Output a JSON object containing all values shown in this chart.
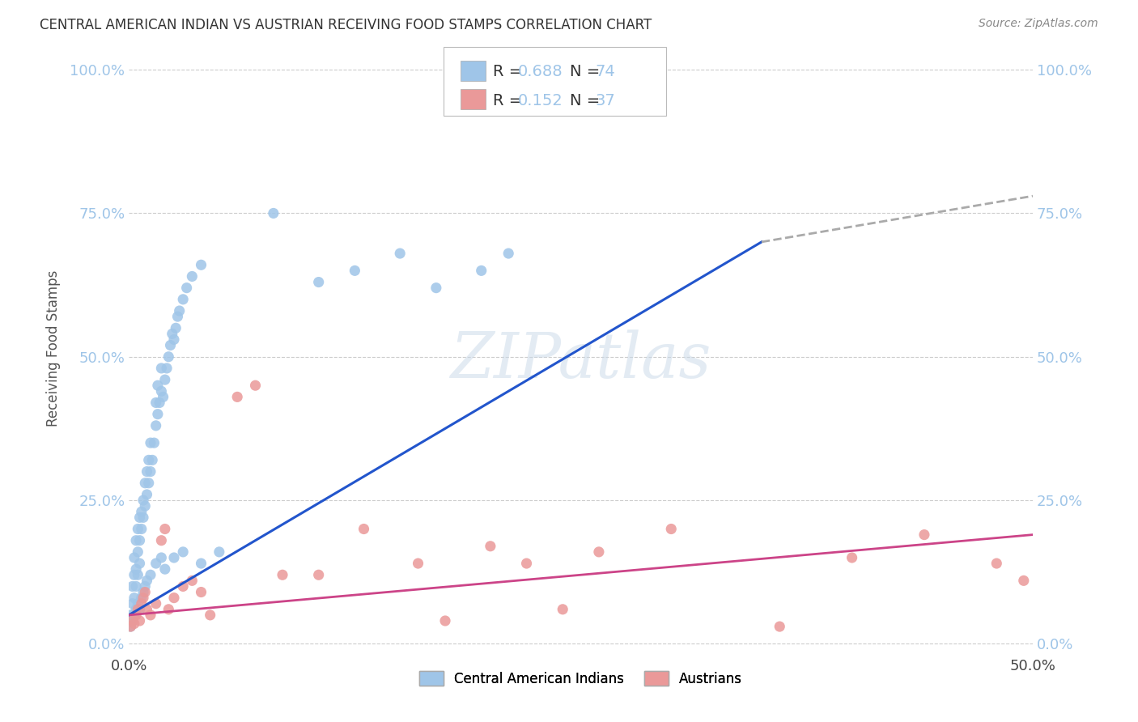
{
  "title": "CENTRAL AMERICAN INDIAN VS AUSTRIAN RECEIVING FOOD STAMPS CORRELATION CHART",
  "source": "Source: ZipAtlas.com",
  "ylabel": "Receiving Food Stamps",
  "xlim": [
    0.0,
    0.5
  ],
  "ylim": [
    -0.02,
    1.05
  ],
  "ytick_vals": [
    0.0,
    0.25,
    0.5,
    0.75,
    1.0
  ],
  "ytick_labels": [
    "0.0%",
    "25.0%",
    "50.0%",
    "75.0%",
    "100.0%"
  ],
  "xtick_vals": [
    0.0,
    0.5
  ],
  "xtick_labels": [
    "0.0%",
    "50.0%"
  ],
  "grid_color": "#cccccc",
  "background_color": "#ffffff",
  "watermark": "ZIPatlas",
  "blue_color": "#9fc5e8",
  "pink_color": "#ea9999",
  "blue_line_color": "#2255cc",
  "pink_line_color": "#cc4488",
  "dashed_line_color": "#aaaaaa",
  "blue_scatter": [
    [
      0.001,
      0.05
    ],
    [
      0.002,
      0.07
    ],
    [
      0.002,
      0.1
    ],
    [
      0.003,
      0.08
    ],
    [
      0.003,
      0.12
    ],
    [
      0.003,
      0.15
    ],
    [
      0.004,
      0.1
    ],
    [
      0.004,
      0.13
    ],
    [
      0.004,
      0.18
    ],
    [
      0.005,
      0.12
    ],
    [
      0.005,
      0.16
    ],
    [
      0.005,
      0.2
    ],
    [
      0.006,
      0.14
    ],
    [
      0.006,
      0.18
    ],
    [
      0.006,
      0.22
    ],
    [
      0.007,
      0.2
    ],
    [
      0.007,
      0.23
    ],
    [
      0.008,
      0.22
    ],
    [
      0.008,
      0.25
    ],
    [
      0.009,
      0.24
    ],
    [
      0.009,
      0.28
    ],
    [
      0.01,
      0.26
    ],
    [
      0.01,
      0.3
    ],
    [
      0.011,
      0.28
    ],
    [
      0.011,
      0.32
    ],
    [
      0.012,
      0.3
    ],
    [
      0.012,
      0.35
    ],
    [
      0.013,
      0.32
    ],
    [
      0.014,
      0.35
    ],
    [
      0.015,
      0.38
    ],
    [
      0.015,
      0.42
    ],
    [
      0.016,
      0.4
    ],
    [
      0.016,
      0.45
    ],
    [
      0.017,
      0.42
    ],
    [
      0.018,
      0.44
    ],
    [
      0.018,
      0.48
    ],
    [
      0.019,
      0.43
    ],
    [
      0.02,
      0.46
    ],
    [
      0.021,
      0.48
    ],
    [
      0.022,
      0.5
    ],
    [
      0.023,
      0.52
    ],
    [
      0.024,
      0.54
    ],
    [
      0.025,
      0.53
    ],
    [
      0.026,
      0.55
    ],
    [
      0.027,
      0.57
    ],
    [
      0.028,
      0.58
    ],
    [
      0.03,
      0.6
    ],
    [
      0.032,
      0.62
    ],
    [
      0.035,
      0.64
    ],
    [
      0.04,
      0.66
    ],
    [
      0.001,
      0.03
    ],
    [
      0.002,
      0.04
    ],
    [
      0.003,
      0.05
    ],
    [
      0.004,
      0.06
    ],
    [
      0.005,
      0.07
    ],
    [
      0.006,
      0.06
    ],
    [
      0.007,
      0.08
    ],
    [
      0.008,
      0.09
    ],
    [
      0.009,
      0.1
    ],
    [
      0.01,
      0.11
    ],
    [
      0.012,
      0.12
    ],
    [
      0.015,
      0.14
    ],
    [
      0.018,
      0.15
    ],
    [
      0.02,
      0.13
    ],
    [
      0.025,
      0.15
    ],
    [
      0.03,
      0.16
    ],
    [
      0.04,
      0.14
    ],
    [
      0.05,
      0.16
    ],
    [
      0.08,
      0.75
    ],
    [
      0.105,
      0.63
    ],
    [
      0.125,
      0.65
    ],
    [
      0.15,
      0.68
    ],
    [
      0.17,
      0.62
    ],
    [
      0.195,
      0.65
    ],
    [
      0.21,
      0.68
    ]
  ],
  "pink_scatter": [
    [
      0.001,
      0.03
    ],
    [
      0.002,
      0.04
    ],
    [
      0.003,
      0.035
    ],
    [
      0.004,
      0.05
    ],
    [
      0.005,
      0.06
    ],
    [
      0.006,
      0.04
    ],
    [
      0.007,
      0.07
    ],
    [
      0.008,
      0.08
    ],
    [
      0.009,
      0.09
    ],
    [
      0.01,
      0.06
    ],
    [
      0.012,
      0.05
    ],
    [
      0.015,
      0.07
    ],
    [
      0.018,
      0.18
    ],
    [
      0.02,
      0.2
    ],
    [
      0.022,
      0.06
    ],
    [
      0.025,
      0.08
    ],
    [
      0.03,
      0.1
    ],
    [
      0.035,
      0.11
    ],
    [
      0.04,
      0.09
    ],
    [
      0.045,
      0.05
    ],
    [
      0.06,
      0.43
    ],
    [
      0.07,
      0.45
    ],
    [
      0.085,
      0.12
    ],
    [
      0.105,
      0.12
    ],
    [
      0.13,
      0.2
    ],
    [
      0.16,
      0.14
    ],
    [
      0.175,
      0.04
    ],
    [
      0.2,
      0.17
    ],
    [
      0.22,
      0.14
    ],
    [
      0.24,
      0.06
    ],
    [
      0.26,
      0.16
    ],
    [
      0.3,
      0.2
    ],
    [
      0.36,
      0.03
    ],
    [
      0.4,
      0.15
    ],
    [
      0.44,
      0.19
    ],
    [
      0.48,
      0.14
    ],
    [
      0.495,
      0.11
    ]
  ],
  "blue_line_solid": [
    [
      0.0,
      0.05
    ],
    [
      0.35,
      0.7
    ]
  ],
  "blue_line_dashed": [
    [
      0.35,
      0.7
    ],
    [
      0.5,
      0.78
    ]
  ],
  "pink_line": [
    [
      0.0,
      0.05
    ],
    [
      0.5,
      0.19
    ]
  ]
}
